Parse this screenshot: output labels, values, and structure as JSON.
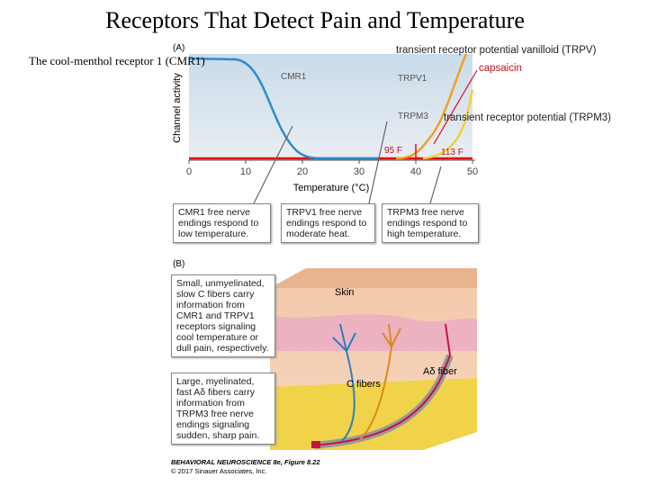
{
  "title": "Receptors That Detect Pain and Temperature",
  "side_label": "The cool-menthol receptor 1 (CMR1)",
  "annotations": {
    "trpv": "transient receptor potential vanilloid (TRPV)",
    "capsaicin": "capsaicin",
    "trpm3": "transient receptor potential (TRPM3)",
    "temp_95": "95 F",
    "temp_113": "113 F"
  },
  "figure": {
    "panel_a": "(A)",
    "y_label": "Channel activity",
    "x_label": "Temperature (°C)",
    "xticks": [
      0,
      10,
      20,
      30,
      40,
      50
    ],
    "curve_labels": [
      "CMR1",
      "TRPV1",
      "TRPM3"
    ],
    "boxes_a": [
      "CMR1 free nerve endings respond to low temperature.",
      "TRPV1 free nerve endings respond to moderate heat.",
      "TRPM3 free nerve endings respond to high temperature."
    ],
    "panel_b": "(B)",
    "boxes_b": [
      "Small, unmyelinated, slow C fibers carry information from CMR1 and TRPV1 receptors signaling cool temperature or dull pain, respectively.",
      "Large, myelinated, fast Aδ fibers carry information from TRPM3 free nerve endings signaling sudden, sharp pain."
    ],
    "skin_label": "Skin",
    "adelta_label": "Aδ fiber",
    "cfiber_label": "C fibers",
    "credit": "BEHAVIORAL NEUROSCIENCE 8e, Figure 8.22",
    "copyright": "© 2017 Sinauer Associates, Inc."
  }
}
